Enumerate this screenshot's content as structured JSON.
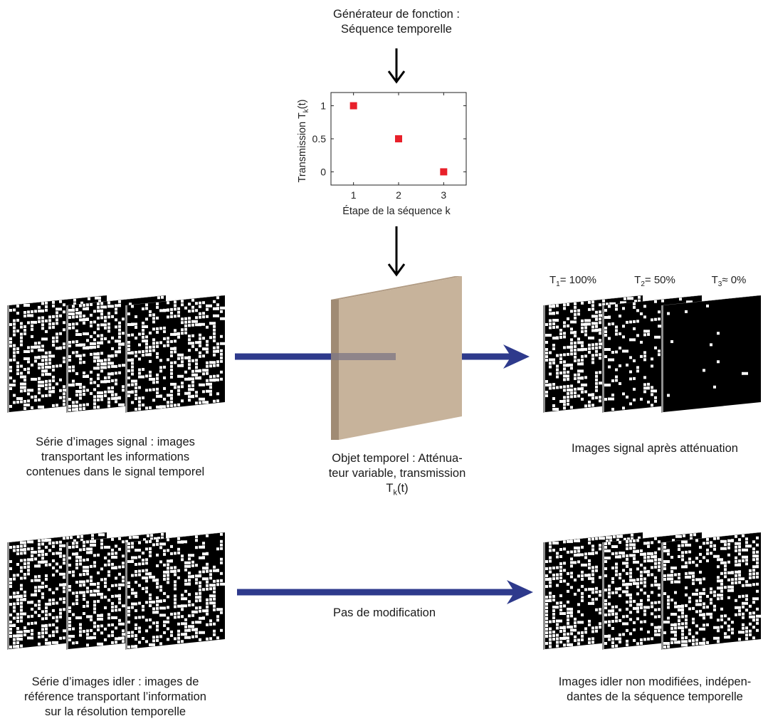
{
  "function_generator": {
    "line1": "Générateur de fonction :",
    "line2": "Séquence temporelle"
  },
  "transmission_plot": {
    "ylabel_main": "Transmission T",
    "ylabel_sub": "k",
    "ylabel_tail": "(t)",
    "xlabel": "Étape de la séquence k",
    "xticks": [
      "1",
      "2",
      "3"
    ],
    "yticks": [
      "1",
      "0.5",
      "0"
    ],
    "marker_color": "#e8202a"
  },
  "chart_data": {
    "type": "scatter",
    "x": [
      1,
      2,
      3
    ],
    "y": [
      1,
      0.5,
      0
    ],
    "xlabel": "Étape de la séquence k",
    "ylabel": "Transmission Tk(t)",
    "xlim": [
      0.5,
      3.5
    ],
    "ylim": [
      -0.2,
      1.2
    ],
    "grid": false
  },
  "signal_series": {
    "line1": "Série d’images signal : images",
    "line2": "transportant les informations",
    "line3": "contenues dans le signal temporel"
  },
  "temporal_object": {
    "line1": "Objet temporel : Atténua-",
    "line2": "teur variable, transmission",
    "line3_main": "T",
    "line3_sub": "k",
    "line3_tail": "(t)",
    "slab_color": "#c7b39b"
  },
  "attenuated_images": {
    "caption": "Images signal après atténuation",
    "labels": [
      {
        "main": "T",
        "sub": "1",
        "tail": "= 100%"
      },
      {
        "main": "T",
        "sub": "2",
        "tail": "= 50%"
      },
      {
        "main": "T",
        "sub": "3",
        "tail": "≈ 0%"
      }
    ]
  },
  "idler_series": {
    "line1": "Série d’images idler : images de",
    "line2": "référence transportant l’information",
    "line3": "sur la résolution temporelle"
  },
  "no_modification": {
    "label": "Pas  de modification"
  },
  "idler_output": {
    "line1": "Images idler non modifiées, indépen-",
    "line2": "dantes de la séquence temporelle"
  },
  "colors": {
    "beam": "#2e3a8c",
    "arrow": "#000000",
    "frame_edge": "#8f8f8f"
  }
}
